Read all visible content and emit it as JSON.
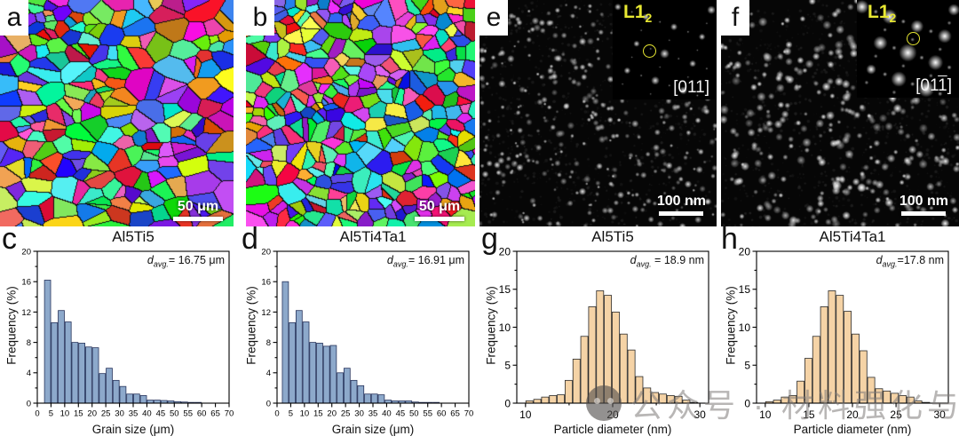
{
  "panels": {
    "a": {
      "letter": "a",
      "scalebar": "50 μm",
      "type": "EBSD grain orientation map"
    },
    "b": {
      "letter": "b",
      "scalebar": "50 μm",
      "type": "EBSD grain orientation map"
    },
    "e": {
      "letter": "e",
      "scalebar": "100 nm",
      "type": "dark-field TEM image",
      "inset": {
        "phase_main": "L1",
        "phase_sub": "2",
        "zone_pre": "[011",
        "zone_bar": "",
        "zone_post": "]"
      }
    },
    "f": {
      "letter": "f",
      "scalebar": "100 nm",
      "type": "dark-field TEM image",
      "inset": {
        "phase_main": "L1",
        "phase_sub": "2",
        "zone_pre": "[01",
        "zone_bar": "1",
        "zone_post": "]"
      }
    }
  },
  "chart_data": [
    {
      "id": "c",
      "letter": "c",
      "type": "bar",
      "title": "Al5Ti5",
      "xlabel": "Grain size (μm)",
      "ylabel": "Frequency (%)",
      "xlim": [
        0,
        70
      ],
      "ylim": [
        0,
        20
      ],
      "xticks": [
        0,
        5,
        10,
        15,
        20,
        25,
        30,
        35,
        40,
        45,
        50,
        55,
        60,
        65,
        70
      ],
      "xminor": [],
      "yticks": [
        0,
        4,
        8,
        12,
        16,
        20
      ],
      "yminor": [
        2,
        6,
        10,
        14,
        18
      ],
      "tick_font": 9.5,
      "bin_start": 2.5,
      "bin_width": 2.5,
      "values": [
        16.2,
        10.6,
        12.2,
        10.7,
        8.0,
        7.9,
        7.4,
        7.3,
        3.9,
        4.6,
        3.0,
        2.2,
        1.2,
        1.2,
        1.0,
        0.4,
        0.4,
        0.35,
        0.3,
        0.2,
        0.15,
        0.1,
        0.1
      ],
      "bar_fill": "#8da9cb",
      "bar_stroke": "#27345c",
      "annotation": {
        "var": "d",
        "sub": "avg.",
        "eq": "= 16.75 μm"
      }
    },
    {
      "id": "d",
      "letter": "d",
      "type": "bar",
      "title": "Al5Ti4Ta1",
      "xlabel": "Grain size (μm)",
      "ylabel": "Frequency (%)",
      "xlim": [
        0,
        70
      ],
      "ylim": [
        0,
        20
      ],
      "xticks": [
        0,
        5,
        10,
        15,
        20,
        25,
        30,
        35,
        40,
        45,
        50,
        55,
        60,
        65,
        70
      ],
      "xminor": [],
      "yticks": [
        0,
        4,
        8,
        12,
        16,
        20
      ],
      "yminor": [
        2,
        6,
        10,
        14,
        18
      ],
      "tick_font": 9.5,
      "bin_start": 1.8,
      "bin_width": 2.5,
      "values": [
        16.0,
        10.6,
        12.2,
        10.7,
        8.0,
        7.9,
        7.5,
        7.6,
        4.0,
        4.6,
        3.0,
        2.3,
        1.2,
        1.2,
        1.1,
        0.4,
        0.3,
        0.3,
        0.3,
        0.15,
        0.1,
        0.1,
        0.1
      ],
      "bar_fill": "#8da9cb",
      "bar_stroke": "#27345c",
      "annotation": {
        "var": "d",
        "sub": "avg.",
        "eq": "= 16.91 μm"
      }
    },
    {
      "id": "g",
      "letter": "g",
      "type": "bar",
      "title": "Al5Ti5",
      "xlabel": "Particle diameter (nm)",
      "ylabel": "Frequency (%)",
      "xlim": [
        9,
        31
      ],
      "ylim": [
        0,
        20
      ],
      "xticks": [
        10,
        20,
        30
      ],
      "xminor": [
        15,
        25
      ],
      "yticks": [
        0,
        5,
        10,
        15,
        20
      ],
      "yminor": [
        2.5,
        7.5,
        12.5,
        17.5
      ],
      "tick_font": 12,
      "bin_start": 10,
      "bin_width": 0.9,
      "values": [
        0.3,
        0.5,
        0.8,
        1.0,
        1.1,
        3.0,
        5.8,
        8.8,
        12.7,
        14.8,
        14.2,
        12.0,
        9.1,
        7.0,
        3.5,
        2.0,
        1.4,
        1.2,
        1.0,
        0.9,
        0.4,
        0.1
      ],
      "bar_fill": "#f5d3a6",
      "bar_stroke": "#2b2b2b",
      "annotation": {
        "var": "d",
        "sub": "avg.",
        "eq": " = 18.9 nm"
      }
    },
    {
      "id": "h",
      "letter": "h",
      "type": "bar",
      "title": "Al5Ti4Ta1",
      "xlabel": "Particle diameter (nm)",
      "ylabel": "Frequency (%)",
      "xlim": [
        9,
        31
      ],
      "ylim": [
        0,
        20
      ],
      "xticks": [
        10,
        15,
        20,
        25,
        30
      ],
      "xminor": [],
      "yticks": [
        0,
        5,
        10,
        15,
        20
      ],
      "yminor": [
        2.5,
        7.5,
        12.5,
        17.5
      ],
      "tick_font": 12,
      "bin_start": 10,
      "bin_width": 0.9,
      "values": [
        0.2,
        0.4,
        0.8,
        1.0,
        2.9,
        5.9,
        8.8,
        12.7,
        14.8,
        14.2,
        12.1,
        9.1,
        6.9,
        3.4,
        1.9,
        1.6,
        1.3,
        1.0,
        0.8,
        0.3,
        0.1
      ],
      "bar_fill": "#f5d3a6",
      "bar_stroke": "#2b2b2b",
      "annotation": {
        "var": "d",
        "sub": "avg.",
        "eq": "=17.8 nm"
      }
    }
  ],
  "watermark": {
    "text": "公众号 · 材料强化与防护",
    "color": "#7d7a78"
  }
}
